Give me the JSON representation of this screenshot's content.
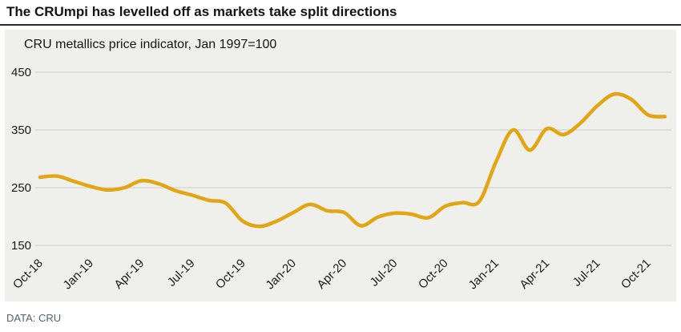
{
  "header": {
    "title": "The CRUmpi has levelled off as markets take split directions"
  },
  "chart": {
    "subtitle": "CRU metallics price indicator, Jan 1997=100"
  },
  "footer": {
    "source": "DATA: CRU"
  },
  "colors": {
    "line": "#e2a514",
    "panel_bg": "#efefec",
    "gridline": "#d2d2cf",
    "axis_text": "#1a1a1a",
    "source_text": "#53626e"
  },
  "chart_data": {
    "type": "line",
    "title": "CRU metallics price indicator, Jan 1997=100",
    "x": [
      "Oct-18",
      "Nov-18",
      "Dec-18",
      "Jan-19",
      "Feb-19",
      "Mar-19",
      "Apr-19",
      "May-19",
      "Jun-19",
      "Jul-19",
      "Aug-19",
      "Sep-19",
      "Oct-19",
      "Nov-19",
      "Dec-19",
      "Jan-20",
      "Feb-20",
      "Mar-20",
      "Apr-20",
      "May-20",
      "Jun-20",
      "Jul-20",
      "Aug-20",
      "Sep-20",
      "Oct-20",
      "Nov-20",
      "Dec-20",
      "Jan-21",
      "Feb-21",
      "Mar-21",
      "Apr-21",
      "May-21",
      "Jun-21",
      "Jul-21",
      "Aug-21",
      "Sep-21",
      "Oct-21",
      "Nov-21"
    ],
    "values": [
      268,
      270,
      261,
      252,
      246,
      250,
      262,
      257,
      245,
      237,
      228,
      223,
      192,
      183,
      192,
      207,
      221,
      210,
      207,
      184,
      199,
      206,
      204,
      198,
      218,
      224,
      226,
      295,
      350,
      315,
      352,
      342,
      362,
      392,
      412,
      403,
      376,
      373
    ],
    "tick_labels": [
      "Oct-18",
      "Jan-19",
      "Apr-19",
      "Jul-19",
      "Oct-19",
      "Jan-20",
      "Apr-20",
      "Jul-20",
      "Oct-20",
      "Jan-21",
      "Apr-21",
      "Jul-21",
      "Oct-21"
    ],
    "tick_every": 3,
    "ylabel": "",
    "xlabel": "",
    "ylim": [
      150,
      450
    ],
    "yticks": [
      150,
      250,
      350,
      450
    ],
    "grid": true,
    "legend": false,
    "line_color": "#e2a514"
  }
}
